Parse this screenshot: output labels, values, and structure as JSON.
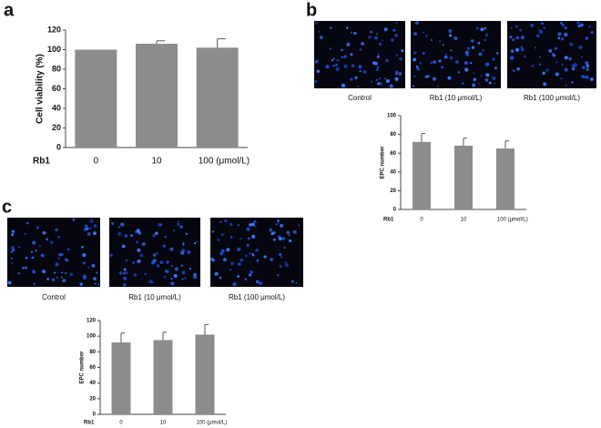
{
  "panels": {
    "letters": [
      "a",
      "b",
      "c"
    ],
    "captions": [
      "Control",
      "Rb1 (10 μmol/L)",
      "Rb1 (100 μmol/L)"
    ]
  },
  "chart_data": [
    {
      "type": "bar",
      "y_label": "Cell viability (%)",
      "x_label": "Rb1",
      "categories": [
        "0",
        "10",
        "100 (μmol/L)"
      ],
      "values": [
        100,
        106,
        102
      ],
      "errors": [
        0,
        3,
        9
      ],
      "color": "#8c8c8c",
      "ylim": [
        0,
        120
      ],
      "yticks": [
        0,
        20,
        40,
        60,
        80,
        100,
        120
      ]
    },
    {
      "type": "bar",
      "y_label": "EPC number",
      "x_label": "Rb1",
      "categories": [
        "0",
        "10",
        "100 (μmol/L)"
      ],
      "values": [
        72,
        68,
        65
      ],
      "errors": [
        9,
        8,
        8
      ],
      "color": "#8c8c8c",
      "ylim": [
        0,
        100
      ],
      "yticks": [
        0,
        20,
        40,
        60,
        80,
        100
      ]
    },
    {
      "type": "bar",
      "y_label": "EPC number",
      "x_label": "Rb1",
      "categories": [
        "0",
        "10",
        "100 (μmol/L)"
      ],
      "values": [
        92,
        95,
        102
      ],
      "errors": [
        12,
        10,
        13
      ],
      "color": "#8c8c8c",
      "ylim": [
        0,
        120
      ],
      "yticks": [
        0,
        20,
        40,
        60,
        80,
        100,
        120
      ]
    }
  ]
}
